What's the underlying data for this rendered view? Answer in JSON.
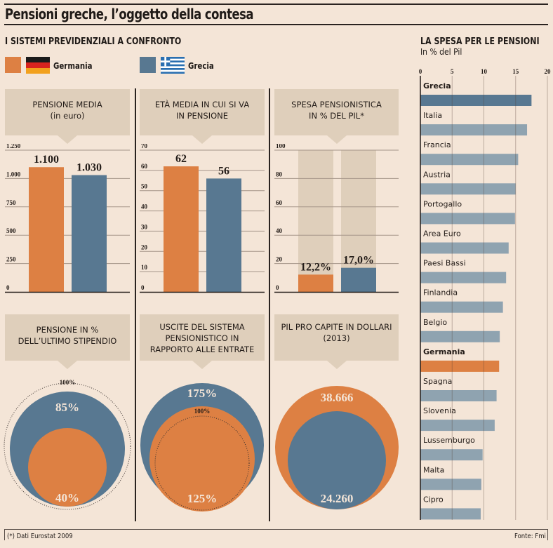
{
  "header": {
    "title": "Pensioni greche, l’oggetto della contesa"
  },
  "section_title": "I SISTEMI PREVIDENZIALI A CONFRONTO",
  "legend": [
    {
      "label": "Germania",
      "color": "#dd8043",
      "flag": "germany-flag"
    },
    {
      "label": "Grecia",
      "color": "#587891",
      "flag": "greece-flag"
    }
  ],
  "colors": {
    "germany": "#dd8043",
    "greece": "#587891",
    "other": "#8fa3b0",
    "track": "#dfcfbb",
    "background": "#f4e5d7"
  },
  "footer": {
    "note": "(*) Dati Eurostat 2009",
    "source": "Fonte: Fmi"
  },
  "chart_data": [
    {
      "type": "bar",
      "title": "PENSIONE MEDIA",
      "subtitle": "(in euro)",
      "categories": [
        "Germania",
        "Grecia"
      ],
      "values": [
        1100,
        1030
      ],
      "value_labels": [
        "1.100",
        "1.030"
      ],
      "ylim": [
        0,
        1250
      ],
      "yticks": [
        0,
        250,
        500,
        750,
        1000,
        1250
      ],
      "ytick_labels": [
        "0",
        "250",
        "500",
        "750",
        "1.000",
        "1.250"
      ],
      "grid": true
    },
    {
      "type": "bar",
      "title": "ETÀ MEDIA IN CUI SI VA",
      "subtitle": "IN PENSIONE",
      "categories": [
        "Germania",
        "Grecia"
      ],
      "values": [
        62,
        56
      ],
      "value_labels": [
        "62",
        "56"
      ],
      "ylim": [
        0,
        70
      ],
      "yticks": [
        0,
        10,
        20,
        30,
        40,
        50,
        60,
        70
      ],
      "ytick_labels": [
        "0",
        "10",
        "20",
        "30",
        "40",
        "50",
        "60",
        "70"
      ],
      "grid": true
    },
    {
      "type": "bar",
      "title": "SPESA PENSIONISTICA",
      "subtitle": "IN % DEL PIL*",
      "categories": [
        "Germania",
        "Grecia"
      ],
      "values": [
        12.2,
        17.0
      ],
      "value_labels": [
        "12,2%",
        "17,0%"
      ],
      "ylim": [
        0,
        100
      ],
      "yticks": [
        0,
        20,
        40,
        60,
        80,
        100
      ],
      "ytick_labels": [
        "0",
        "20",
        "40",
        "60",
        "80",
        "100"
      ],
      "grid": true
    },
    {
      "type": "nested-circles",
      "title": "PENSIONE IN %",
      "subtitle": "DELL’ULTIMO STIPENDIO",
      "reference": {
        "value": 100,
        "label": "100%"
      },
      "series": [
        {
          "name": "Grecia",
          "value": 85,
          "label": "85%"
        },
        {
          "name": "Germania",
          "value": 40,
          "label": "40%"
        }
      ]
    },
    {
      "type": "nested-circles",
      "title": "USCITE DEL SISTEMA",
      "subtitle": "PENSIONISTICO IN RAPPORTO ALLE ENTRATE",
      "title_lines": [
        "USCITE DEL SISTEMA",
        "PENSIONISTICO IN",
        "RAPPORTO ALLE ENTRATE"
      ],
      "reference": {
        "value": 100,
        "label": "100%"
      },
      "series": [
        {
          "name": "Grecia",
          "value": 175,
          "label": "175%"
        },
        {
          "name": "Germania",
          "value": 125,
          "label": "125%"
        }
      ]
    },
    {
      "type": "nested-circles",
      "title": "PIL PRO CAPITE IN DOLLARI",
      "subtitle": "(2013)",
      "series": [
        {
          "name": "Germania",
          "value": 38666,
          "label": "38.666"
        },
        {
          "name": "Grecia",
          "value": 24260,
          "label": "24.260"
        }
      ]
    },
    {
      "type": "bar",
      "orientation": "horizontal",
      "title": "LA SPESA PER LE PENSIONI",
      "subtitle": "In % del Pil",
      "xlim": [
        0,
        20
      ],
      "xticks": [
        0,
        5,
        10,
        15,
        20
      ],
      "xtick_labels": [
        "0",
        "5",
        "10",
        "15",
        "20"
      ],
      "grid": true,
      "categories": [
        "Grecia",
        "Italia",
        "Francia",
        "Austria",
        "Portogallo",
        "Area Euro",
        "Paesi Bassi",
        "Finlandia",
        "Belgio",
        "Germania",
        "Spagna",
        "Slovenia",
        "Lussemburgo",
        "Malta",
        "Cipro"
      ],
      "values": [
        17.5,
        16.8,
        15.4,
        15.0,
        14.9,
        13.9,
        13.5,
        13.0,
        12.5,
        12.4,
        12.0,
        11.7,
        9.8,
        9.6,
        9.5
      ],
      "highlight": {
        "Grecia": "greece",
        "Germania": "germany"
      }
    }
  ]
}
